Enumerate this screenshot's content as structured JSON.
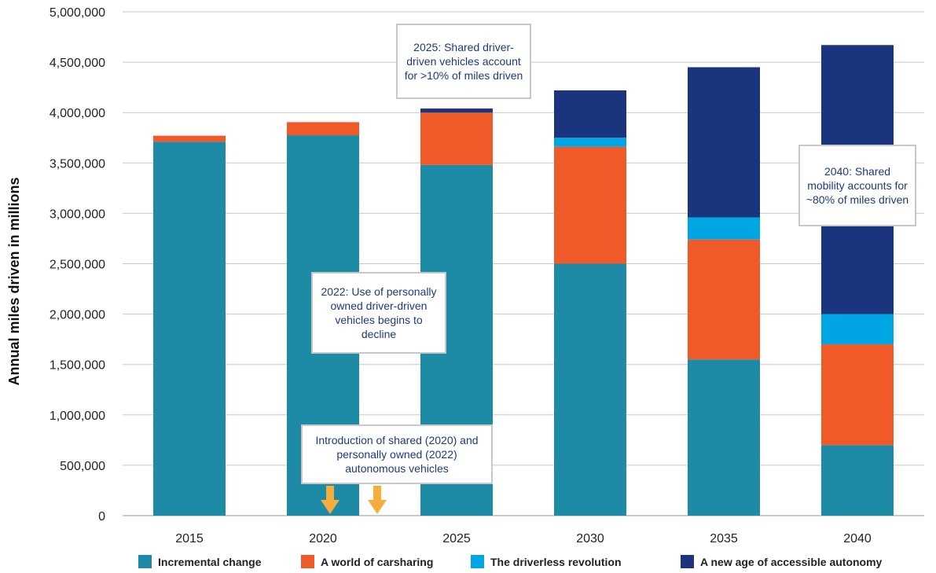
{
  "chart_data": {
    "type": "bar",
    "stacked": true,
    "categories": [
      "2015",
      "2020",
      "2025",
      "2030",
      "2035",
      "2040"
    ],
    "series": [
      {
        "name": "Incremental change",
        "color": "#1d8aa6",
        "values": [
          3710000,
          3775000,
          3480000,
          2500000,
          1550000,
          700000
        ]
      },
      {
        "name": "A world of carsharing",
        "color": "#f05a28",
        "values": [
          60000,
          130000,
          520000,
          1160000,
          1190000,
          1000000
        ]
      },
      {
        "name": "The driverless revolution",
        "color": "#00a6e3",
        "values": [
          0,
          0,
          0,
          90000,
          220000,
          300000
        ]
      },
      {
        "name": "A new age of accessible autonomy",
        "color": "#1a357d",
        "values": [
          0,
          0,
          40000,
          470000,
          1490000,
          2670000
        ]
      }
    ],
    "ylabel": "Annual miles driven in millions",
    "xlabel": "",
    "ylim": [
      0,
      5000000
    ],
    "yticks": [
      "0",
      "500,000",
      "1,000,000",
      "1,500,000",
      "2,000,000",
      "2,500,000",
      "3,000,000",
      "3,500,000",
      "4,000,000",
      "4,500,000",
      "5,000,000"
    ],
    "grid": true,
    "legend": "bottom",
    "annotations": {
      "note_2025": "2025: Shared driver-driven vehicles account for >10% of miles driven",
      "note_2040": "2040: Shared mobility accounts for ~80% of miles driven",
      "note_2022": "2022: Use of personally owned driver-driven vehicles begins to decline",
      "note_intro": "Introduction of shared (2020) and personally owned (2022) autonomous vehicles"
    },
    "arrow_color": "#f7ac3b"
  }
}
